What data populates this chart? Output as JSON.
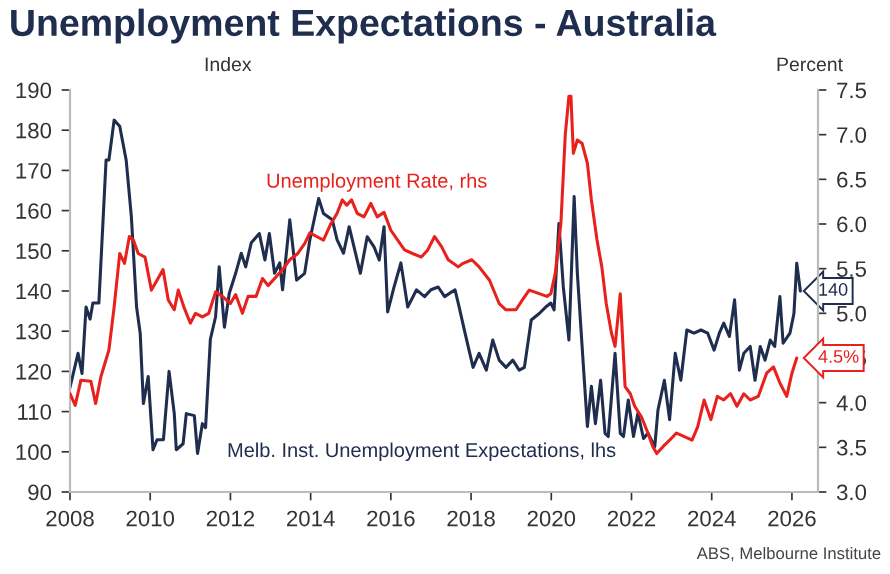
{
  "chart_data": {
    "type": "line",
    "title": "Unemployment Expectations - Australia",
    "ylabel": "Index",
    "y2label": "Percent",
    "annotations": [
      "ABS, Melbourne Institute"
    ],
    "xlim": [
      2008,
      2026.65
    ],
    "xticks": [
      2008,
      2010,
      2012,
      2014,
      2016,
      2018,
      2020,
      2022,
      2024,
      2026
    ],
    "ylim": [
      90,
      190
    ],
    "yticks": [
      90,
      100,
      110,
      120,
      130,
      140,
      150,
      160,
      170,
      180,
      190
    ],
    "y2lim": [
      3.0,
      7.5
    ],
    "y2ticks": [
      {
        "value": 3.0,
        "label": "3.0"
      },
      3.5,
      {
        "value": 4.0,
        "label": "4.0"
      },
      4.5,
      {
        "value": 5.0,
        "label": "5.0"
      },
      5.5,
      {
        "value": 6.0,
        "label": "6.0"
      },
      6.5,
      {
        "value": 7.0,
        "label": "7.0"
      },
      7.5
    ],
    "grid": false,
    "legend": false,
    "series": [
      {
        "name": "Melb. Inst. Unemployment Expectations, lhs",
        "color": "#1f2d4e",
        "axis": "y",
        "x": [
          2008.0,
          2008.2,
          2008.3,
          2008.4,
          2008.5,
          2008.57,
          2008.72,
          2008.9,
          2008.97,
          2009.1,
          2009.24,
          2009.4,
          2009.53,
          2009.66,
          2009.75,
          2009.83,
          2009.95,
          2010.07,
          2010.17,
          2010.33,
          2010.47,
          2010.6,
          2010.65,
          2010.82,
          2010.9,
          2011.1,
          2011.18,
          2011.3,
          2011.38,
          2011.5,
          2011.63,
          2011.72,
          2011.85,
          2011.97,
          2012.13,
          2012.27,
          2012.38,
          2012.52,
          2012.72,
          2012.86,
          2012.97,
          2013.1,
          2013.23,
          2013.3,
          2013.48,
          2013.65,
          2013.85,
          2013.98,
          2014.2,
          2014.32,
          2014.54,
          2014.66,
          2014.82,
          2014.96,
          2015.16,
          2015.24,
          2015.41,
          2015.58,
          2015.71,
          2015.83,
          2015.92,
          2016.08,
          2016.25,
          2016.42,
          2016.64,
          2016.84,
          2017.0,
          2017.18,
          2017.34,
          2017.6,
          2017.68,
          2017.85,
          2018.05,
          2018.2,
          2018.38,
          2018.54,
          2018.7,
          2018.87,
          2019.04,
          2019.2,
          2019.33,
          2019.5,
          2019.7,
          2019.86,
          2019.99,
          2020.07,
          2020.19,
          2020.3,
          2020.44,
          2020.57,
          2020.65,
          2020.77,
          2020.9,
          2021.0,
          2021.1,
          2021.23,
          2021.34,
          2021.42,
          2021.59,
          2021.72,
          2021.8,
          2021.92,
          2022.05,
          2022.16,
          2022.3,
          2022.41,
          2022.58,
          2022.66,
          2022.82,
          2022.95,
          2023.09,
          2023.23,
          2023.38,
          2023.56,
          2023.73,
          2023.9,
          2024.06,
          2024.19,
          2024.3,
          2024.44,
          2024.57,
          2024.69,
          2024.8,
          2024.96,
          2025.08,
          2025.21,
          2025.33,
          2025.46,
          2025.57,
          2025.7,
          2025.78,
          2025.95,
          2026.05,
          2026.12,
          2026.21
        ],
        "values": [
          116,
          124.5,
          119.5,
          136,
          133,
          137,
          137,
          172.6,
          172.6,
          182.5,
          181,
          172.6,
          158.5,
          136,
          129.5,
          112,
          118.7,
          100.5,
          103,
          103,
          120,
          109.5,
          100.5,
          102,
          109.5,
          109,
          99.6,
          107,
          106,
          128,
          133.6,
          146,
          131,
          139.4,
          144.4,
          149.4,
          146,
          152,
          154.3,
          147.7,
          154.3,
          144.4,
          147,
          140.3,
          157.7,
          142.7,
          144.4,
          152.7,
          163,
          159.3,
          157.7,
          152.7,
          149.4,
          156,
          147.7,
          144.4,
          153.5,
          151,
          147.7,
          156,
          134.8,
          141,
          147,
          136,
          140.3,
          138.6,
          140.3,
          141,
          138.6,
          140.3,
          137,
          129.5,
          121,
          124.5,
          120.3,
          127.8,
          122.8,
          121,
          122.8,
          120.3,
          121,
          132.8,
          134.4,
          136,
          137,
          135.3,
          156.8,
          141,
          127.8,
          163.5,
          144.4,
          126,
          106.3,
          116.3,
          107,
          117.8,
          104.6,
          103.8,
          124.5,
          104.6,
          103.8,
          112.9,
          103.8,
          109.6,
          103.3,
          104.6,
          101.3,
          110.4,
          117.8,
          108,
          124.5,
          117.8,
          130.3,
          129.5,
          130.3,
          129.5,
          125.3,
          129.5,
          132,
          128.7,
          137.8,
          120.3,
          124.5,
          126.2,
          117.8,
          126.2,
          122.8,
          127.8,
          126.2,
          138.6,
          127,
          129.5,
          134.4,
          146.9,
          140
        ],
        "value_labels": [
          null,
          null,
          null,
          null,
          null,
          null,
          null,
          null,
          null,
          null,
          null,
          null,
          null,
          null,
          null,
          null,
          null,
          null,
          null,
          null,
          null,
          null,
          null,
          null,
          null,
          null,
          null,
          null,
          null,
          null,
          null,
          null,
          null,
          null,
          null,
          null,
          null,
          null,
          null,
          null,
          null,
          null,
          null,
          null,
          null,
          null,
          null,
          null,
          null,
          null,
          null,
          null,
          null,
          null,
          null,
          null,
          null,
          null,
          null,
          null,
          null,
          null,
          null,
          null,
          null,
          null,
          null,
          null,
          null,
          null,
          null,
          null,
          null,
          null,
          null,
          null,
          null,
          null,
          null,
          null,
          null,
          null,
          null,
          null,
          null,
          null,
          null,
          null,
          null,
          null,
          null,
          null,
          null,
          null,
          null,
          null,
          null,
          null,
          null,
          null,
          null,
          null,
          null,
          null,
          null,
          null,
          null,
          null,
          null,
          null,
          null,
          null,
          null,
          null,
          null,
          null,
          null,
          null,
          null,
          null,
          null,
          null,
          null,
          null,
          null,
          null,
          null,
          null,
          null,
          null,
          null,
          null,
          null,
          null,
          "140"
        ]
      },
      {
        "name": "Unemployment Rate, rhs",
        "color": "#e8211d",
        "axis": "y2",
        "x": [
          2008.0,
          2008.13,
          2008.27,
          2008.52,
          2008.64,
          2008.77,
          2008.97,
          2009.1,
          2009.24,
          2009.36,
          2009.48,
          2009.58,
          2009.7,
          2009.87,
          2010.03,
          2010.17,
          2010.32,
          2010.45,
          2010.6,
          2010.7,
          2010.84,
          2011.0,
          2011.13,
          2011.3,
          2011.46,
          2011.63,
          2011.8,
          2012.0,
          2012.13,
          2012.3,
          2012.44,
          2012.64,
          2012.8,
          2012.94,
          2013.14,
          2013.3,
          2013.48,
          2013.68,
          2013.85,
          2013.98,
          2014.15,
          2014.32,
          2014.49,
          2014.66,
          2014.79,
          2014.9,
          2015.02,
          2015.16,
          2015.33,
          2015.5,
          2015.66,
          2015.83,
          2016.0,
          2016.17,
          2016.34,
          2016.54,
          2016.76,
          2016.92,
          2017.09,
          2017.26,
          2017.43,
          2017.68,
          2017.8,
          2018.02,
          2018.2,
          2018.46,
          2018.7,
          2018.87,
          2019.12,
          2019.28,
          2019.45,
          2019.7,
          2019.89,
          2019.99,
          2020.1,
          2020.24,
          2020.35,
          2020.44,
          2020.49,
          2020.55,
          2020.65,
          2020.77,
          2020.9,
          2021.0,
          2021.14,
          2021.26,
          2021.37,
          2021.5,
          2021.59,
          2021.72,
          2021.84,
          2021.97,
          2022.08,
          2022.25,
          2022.41,
          2022.53,
          2022.63,
          2022.79,
          2022.95,
          2023.12,
          2023.32,
          2023.51,
          2023.65,
          2023.81,
          2023.98,
          2024.14,
          2024.3,
          2024.47,
          2024.63,
          2024.8,
          2024.96,
          2025.16,
          2025.37,
          2025.54,
          2025.7,
          2025.87,
          2026.0,
          2026.12
        ],
        "values": [
          4.1,
          3.97,
          4.25,
          4.24,
          3.99,
          4.29,
          4.59,
          5.07,
          5.67,
          5.56,
          5.86,
          5.82,
          5.67,
          5.63,
          5.26,
          5.37,
          5.49,
          5.15,
          5.04,
          5.26,
          5.07,
          4.89,
          5.0,
          4.96,
          5.0,
          5.24,
          5.19,
          5.11,
          5.21,
          5.0,
          5.19,
          5.19,
          5.39,
          5.31,
          5.41,
          5.49,
          5.6,
          5.67,
          5.78,
          5.9,
          5.86,
          5.82,
          5.99,
          6.12,
          6.27,
          6.21,
          6.27,
          6.12,
          6.08,
          6.23,
          6.08,
          6.13,
          5.93,
          5.82,
          5.71,
          5.67,
          5.63,
          5.71,
          5.86,
          5.75,
          5.6,
          5.52,
          5.56,
          5.6,
          5.52,
          5.37,
          5.11,
          5.04,
          5.04,
          5.15,
          5.26,
          5.22,
          5.19,
          5.22,
          5.45,
          6.01,
          7.01,
          7.43,
          7.43,
          6.79,
          6.94,
          6.9,
          6.68,
          6.27,
          5.82,
          5.52,
          5.11,
          4.78,
          4.63,
          5.22,
          4.18,
          4.1,
          3.96,
          3.84,
          3.66,
          3.51,
          3.43,
          3.51,
          3.58,
          3.66,
          3.62,
          3.58,
          3.73,
          4.03,
          3.81,
          4.07,
          4.03,
          4.1,
          3.96,
          4.1,
          4.03,
          4.07,
          4.33,
          4.4,
          4.22,
          4.07,
          4.33,
          4.5
        ],
        "value_labels": [
          null,
          null,
          null,
          null,
          null,
          null,
          null,
          null,
          null,
          null,
          null,
          null,
          null,
          null,
          null,
          null,
          null,
          null,
          null,
          null,
          null,
          null,
          null,
          null,
          null,
          null,
          null,
          null,
          null,
          null,
          null,
          null,
          null,
          null,
          null,
          null,
          null,
          null,
          null,
          null,
          null,
          null,
          null,
          null,
          null,
          null,
          null,
          null,
          null,
          null,
          null,
          null,
          null,
          null,
          null,
          null,
          null,
          null,
          null,
          null,
          null,
          null,
          null,
          null,
          null,
          null,
          null,
          null,
          null,
          null,
          null,
          null,
          null,
          null,
          null,
          null,
          null,
          null,
          null,
          null,
          null,
          null,
          null,
          null,
          null,
          null,
          null,
          null,
          null,
          null,
          null,
          null,
          null,
          null,
          null,
          null,
          null,
          null,
          null,
          null,
          null,
          null,
          null,
          null,
          null,
          null,
          null,
          null,
          null,
          null,
          null,
          null,
          null,
          null,
          null,
          null,
          null,
          "4.5%"
        ]
      }
    ]
  }
}
